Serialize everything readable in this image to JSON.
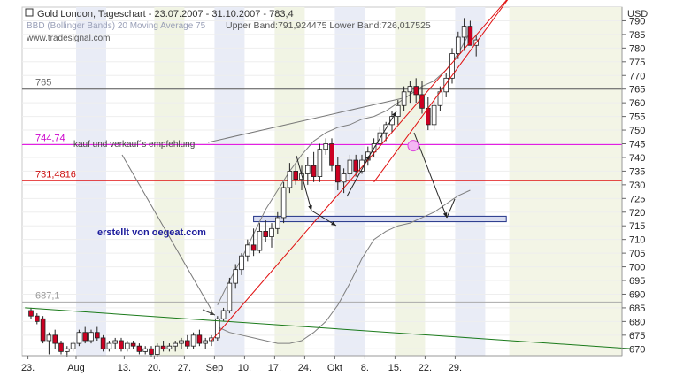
{
  "header": {
    "title": "Gold London, Tageschart - 23.07.2007 - 31.10.2007 - 783,4",
    "line2_left": "BBD (Bollinger Bands) 20 Moving Average 75",
    "bands_info": "Upper Band:791,924475 Lower Band:726,017525",
    "source": "www.tradesignal.com",
    "currency": "USD"
  },
  "annotations": {
    "recommendation": "kauf und verkauf´s empfehlung",
    "author": "erstellt von oegeat.com"
  },
  "colors": {
    "up": "#ffffff",
    "down": "#cc0022",
    "band": "#7f7f7f",
    "line_765": "#555555",
    "line_744": "#e000e0",
    "line_731": "#e01010",
    "line_687": "#aaaaaa",
    "trend_green": "#1a7a1a",
    "channel_red": "#e01010",
    "zone_fill": "#d8dcf0",
    "zone_border": "#223388"
  },
  "chart_data": {
    "type": "candlestick",
    "title": "Gold London, Tageschart - 23.07.2007 - 31.10.2007 - 783,4",
    "ylabel": "USD",
    "ylim": [
      667.5,
      795
    ],
    "yticks": [
      670,
      675,
      680,
      685,
      690,
      695,
      700,
      705,
      710,
      715,
      720,
      725,
      730,
      735,
      740,
      745,
      750,
      755,
      760,
      765,
      770,
      775,
      780,
      785,
      790
    ],
    "xticks": [
      {
        "label": "23.",
        "bar": 0
      },
      {
        "label": "Aug",
        "bar": 8
      },
      {
        "label": "13.",
        "bar": 16
      },
      {
        "label": "20.",
        "bar": 21
      },
      {
        "label": "27.",
        "bar": 26
      },
      {
        "label": "Sep",
        "bar": 31
      },
      {
        "label": "10.",
        "bar": 36
      },
      {
        "label": "17.",
        "bar": 41
      },
      {
        "label": "24.",
        "bar": 46
      },
      {
        "label": "Okt",
        "bar": 51
      },
      {
        "label": "8.",
        "bar": 56
      },
      {
        "label": "15.",
        "bar": 61
      },
      {
        "label": "22.",
        "bar": 66
      },
      {
        "label": "29.",
        "bar": 71
      }
    ],
    "candles": [
      [
        684,
        685,
        681,
        682
      ],
      [
        682,
        683,
        679,
        680
      ],
      [
        681,
        682,
        672,
        673
      ],
      [
        673,
        676,
        668,
        675
      ],
      [
        675,
        677,
        670,
        672
      ],
      [
        672,
        673,
        668,
        669
      ],
      [
        669,
        671,
        667,
        670
      ],
      [
        670,
        673,
        669,
        672
      ],
      [
        672,
        677,
        671,
        676
      ],
      [
        676,
        678,
        672,
        673
      ],
      [
        673,
        677,
        672,
        676
      ],
      [
        676,
        678,
        673,
        674
      ],
      [
        674,
        675,
        669,
        670
      ],
      [
        670,
        673,
        669,
        672
      ],
      [
        672,
        674,
        670,
        673
      ],
      [
        673,
        674,
        669,
        670
      ],
      [
        670,
        673,
        669,
        672
      ],
      [
        672,
        673,
        670,
        671
      ],
      [
        671,
        672,
        668,
        669
      ],
      [
        669,
        671,
        668,
        670
      ],
      [
        670,
        671,
        667,
        668
      ],
      [
        668,
        672,
        667,
        671
      ],
      [
        671,
        673,
        669,
        670
      ],
      [
        670,
        672,
        669,
        671
      ],
      [
        671,
        673,
        669,
        672
      ],
      [
        672,
        674,
        670,
        673
      ],
      [
        673,
        675,
        670,
        671
      ],
      [
        671,
        676,
        670,
        675
      ],
      [
        675,
        677,
        671,
        672
      ],
      [
        672,
        674,
        670,
        673
      ],
      [
        673,
        675,
        671,
        674
      ],
      [
        674,
        682,
        673,
        681
      ],
      [
        681,
        685,
        680,
        684
      ],
      [
        684,
        696,
        683,
        694
      ],
      [
        694,
        701,
        692,
        699
      ],
      [
        699,
        705,
        697,
        704
      ],
      [
        704,
        710,
        702,
        708
      ],
      [
        708,
        714,
        704,
        706
      ],
      [
        706,
        716,
        705,
        713
      ],
      [
        713,
        717,
        709,
        711
      ],
      [
        711,
        716,
        707,
        714
      ],
      [
        714,
        720,
        712,
        718
      ],
      [
        718,
        731,
        716,
        729
      ],
      [
        729,
        738,
        727,
        735
      ],
      [
        735,
        737,
        730,
        732
      ],
      [
        732,
        737,
        728,
        734
      ],
      [
        734,
        740,
        730,
        737
      ],
      [
        737,
        742,
        731,
        733
      ],
      [
        733,
        745,
        731,
        743
      ],
      [
        743,
        747,
        741,
        745
      ],
      [
        745,
        747,
        735,
        737
      ],
      [
        737,
        740,
        728,
        731
      ],
      [
        731,
        736,
        727,
        734
      ],
      [
        734,
        741,
        732,
        739
      ],
      [
        739,
        741,
        733,
        735
      ],
      [
        735,
        741,
        734,
        739
      ],
      [
        739,
        744,
        737,
        742
      ],
      [
        742,
        747,
        740,
        745
      ],
      [
        745,
        751,
        743,
        749
      ],
      [
        749,
        753,
        746,
        752
      ],
      [
        752,
        757,
        749,
        755
      ],
      [
        755,
        761,
        752,
        759
      ],
      [
        759,
        766,
        757,
        764
      ],
      [
        764,
        768,
        760,
        766
      ],
      [
        766,
        769,
        760,
        763
      ],
      [
        763,
        768,
        756,
        758
      ],
      [
        758,
        762,
        750,
        752
      ],
      [
        752,
        761,
        750,
        759
      ],
      [
        759,
        766,
        757,
        764
      ],
      [
        764,
        771,
        762,
        769
      ],
      [
        769,
        780,
        767,
        778
      ],
      [
        778,
        786,
        776,
        784
      ],
      [
        784,
        791,
        779,
        788
      ],
      [
        788,
        790,
        781,
        781
      ],
      [
        781,
        785,
        777,
        783
      ]
    ],
    "bollinger_upper": [
      [
        31,
        686
      ],
      [
        33,
        695
      ],
      [
        35,
        703
      ],
      [
        37,
        712
      ],
      [
        39,
        721
      ],
      [
        41,
        728
      ],
      [
        43,
        735
      ],
      [
        45,
        741
      ],
      [
        47,
        746
      ],
      [
        49,
        749
      ],
      [
        51,
        751
      ],
      [
        53,
        752
      ],
      [
        55,
        754
      ],
      [
        57,
        755
      ],
      [
        59,
        757
      ],
      [
        61,
        760
      ],
      [
        63,
        763
      ],
      [
        65,
        766
      ],
      [
        67,
        768
      ],
      [
        69,
        772
      ],
      [
        71,
        778
      ],
      [
        73,
        786
      ]
    ],
    "bollinger_lower": [
      [
        31,
        678
      ],
      [
        33,
        676
      ],
      [
        35,
        675
      ],
      [
        37,
        674
      ],
      [
        39,
        673
      ],
      [
        41,
        672
      ],
      [
        43,
        672
      ],
      [
        45,
        673
      ],
      [
        47,
        676
      ],
      [
        49,
        680
      ],
      [
        51,
        686
      ],
      [
        53,
        694
      ],
      [
        55,
        703
      ],
      [
        57,
        710
      ],
      [
        59,
        713
      ],
      [
        61,
        715
      ],
      [
        63,
        716
      ],
      [
        65,
        718
      ],
      [
        67,
        720
      ],
      [
        69,
        723
      ],
      [
        71,
        726
      ],
      [
        73,
        728
      ]
    ],
    "hlines": [
      {
        "value": 765,
        "label": "765"
      },
      {
        "value": 744.74,
        "label": "744,74"
      },
      {
        "value": 731.4816,
        "label": "731,4816"
      },
      {
        "value": 687.1,
        "label": "687,1"
      }
    ],
    "support_zone": {
      "from_bar": 37,
      "to_bar": 79,
      "low": 716.5,
      "high": 718.5
    },
    "trendline_green": [
      [
        -1,
        685
      ],
      [
        100,
        670
      ]
    ],
    "channel_lines": [
      {
        "from": [
          30,
          673
        ],
        "to": [
          80,
          800
        ]
      },
      {
        "from": [
          57,
          731
        ],
        "to": [
          80,
          800
        ]
      }
    ]
  }
}
